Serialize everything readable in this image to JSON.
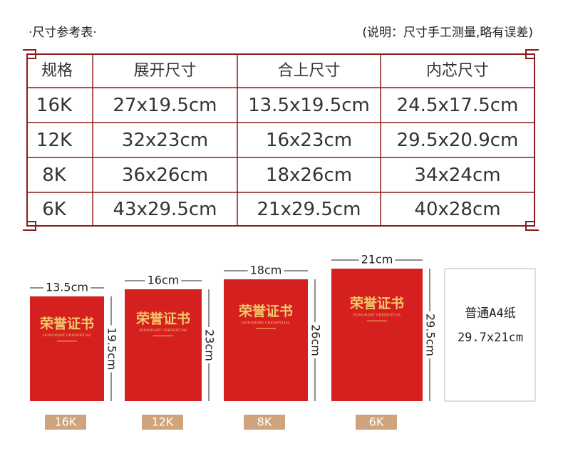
{
  "header": {
    "title": "·尺寸参考表·",
    "note": "(说明：尺寸手工测量,略有误差)"
  },
  "table": {
    "columns": [
      "规格",
      "展开尺寸",
      "合上尺寸",
      "内芯尺寸"
    ],
    "rows": [
      [
        "16K",
        "27x19.5cm",
        "13.5x19.5cm",
        "24.5x17.5cm"
      ],
      [
        "12K",
        "32x23cm",
        "16x23cm",
        "29.5x20.9cm"
      ],
      [
        "8K",
        "36x26cm",
        "18x26cm",
        "34x24cm"
      ],
      [
        "6K",
        "43x29.5cm",
        "21x29.5cm",
        "40x28cm"
      ]
    ]
  },
  "books": [
    {
      "width": "13.5cm",
      "height": "19.5cm",
      "size": "16K",
      "cover": "荣誉证书",
      "cover_sub": "HONORARY CREDENTIAL"
    },
    {
      "width": "16cm",
      "height": "23cm",
      "size": "12K",
      "cover": "荣誉证书",
      "cover_sub": "HONORARY CREDENTIAL"
    },
    {
      "width": "18cm",
      "height": "26cm",
      "size": "8K",
      "cover": "荣誉证书",
      "cover_sub": "HONORARY CREDENTIAL"
    },
    {
      "width": "21cm",
      "height": "29.5cm",
      "size": "6K",
      "cover": "荣誉证书",
      "cover_sub": "HONORARY CREDENTIAL"
    }
  ],
  "a4": {
    "label": "普通A4纸",
    "size": "29.7x21cm"
  }
}
